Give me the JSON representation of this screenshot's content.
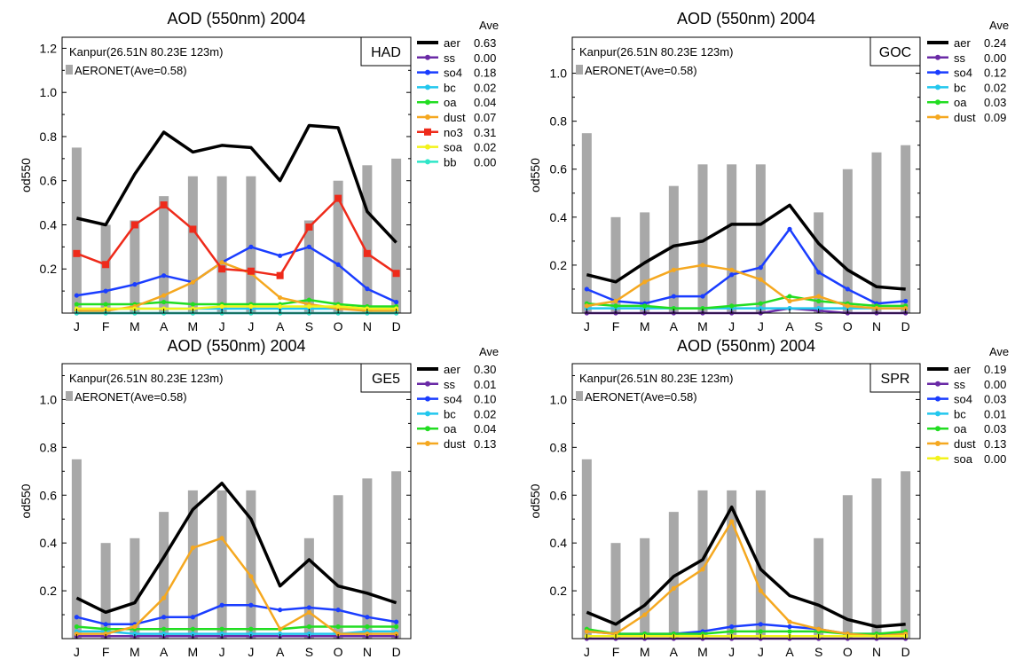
{
  "chart_data": [
    {
      "type": "bar+line",
      "title": "AOD (550nm) 2004",
      "ylabel": "od550",
      "ylim": [
        0,
        1.25
      ],
      "yticks": [
        "0.2",
        "0.4",
        "0.6",
        "0.8",
        "1.0",
        "1.2"
      ],
      "categories": [
        "J",
        "F",
        "M",
        "A",
        "M",
        "J",
        "J",
        "A",
        "S",
        "O",
        "N",
        "D"
      ],
      "site": "Kanpur(26.51N  80.23E  123m)",
      "model": "HAD",
      "bar_series": {
        "name": "AERONET(Ave=0.58)",
        "values": [
          0.75,
          0.4,
          0.42,
          0.53,
          0.62,
          0.62,
          0.62,
          0.0,
          0.42,
          0.6,
          0.67,
          0.7
        ]
      },
      "legend_header": "Ave",
      "series": [
        {
          "name": "aer",
          "ave": "0.63",
          "color": "#000000",
          "values": [
            0.43,
            0.4,
            0.63,
            0.82,
            0.73,
            0.76,
            0.75,
            0.6,
            0.85,
            0.84,
            0.46,
            0.32
          ]
        },
        {
          "name": "ss",
          "ave": "0.00",
          "color": "#6a2aa6",
          "values": [
            0.0,
            0.0,
            0.0,
            0.0,
            0.0,
            0.0,
            0.0,
            0.0,
            0.0,
            0.0,
            0.0,
            0.0
          ]
        },
        {
          "name": "so4",
          "ave": "0.18",
          "color": "#1a3dff",
          "values": [
            0.08,
            0.1,
            0.13,
            0.17,
            0.14,
            0.23,
            0.3,
            0.26,
            0.3,
            0.22,
            0.11,
            0.05
          ]
        },
        {
          "name": "bc",
          "ave": "0.02",
          "color": "#22c7ee",
          "values": [
            0.02,
            0.02,
            0.02,
            0.02,
            0.02,
            0.02,
            0.02,
            0.02,
            0.02,
            0.02,
            0.02,
            0.02
          ]
        },
        {
          "name": "oa",
          "ave": "0.04",
          "color": "#22dd22",
          "values": [
            0.04,
            0.04,
            0.04,
            0.05,
            0.04,
            0.04,
            0.04,
            0.04,
            0.06,
            0.04,
            0.03,
            0.03
          ]
        },
        {
          "name": "dust",
          "ave": "0.07",
          "color": "#f5a820",
          "values": [
            0.01,
            0.01,
            0.03,
            0.08,
            0.14,
            0.23,
            0.18,
            0.07,
            0.04,
            0.02,
            0.01,
            0.01
          ]
        },
        {
          "name": "no3",
          "ave": "0.31",
          "color": "#ee2a1a",
          "values": [
            0.27,
            0.22,
            0.4,
            0.49,
            0.38,
            0.2,
            0.19,
            0.17,
            0.39,
            0.52,
            0.27,
            0.18
          ]
        },
        {
          "name": "soa",
          "ave": "0.02",
          "color": "#f3f31a",
          "values": [
            0.02,
            0.02,
            0.02,
            0.02,
            0.02,
            0.03,
            0.03,
            0.03,
            0.03,
            0.03,
            0.02,
            0.02
          ]
        },
        {
          "name": "bb",
          "ave": "0.00",
          "color": "#2ee6c8",
          "values": [
            0.0,
            0.0,
            0.0,
            0.0,
            0.0,
            0.0,
            0.0,
            0.0,
            0.0,
            0.0,
            0.0,
            0.0
          ]
        }
      ]
    },
    {
      "type": "bar+line",
      "title": "AOD (550nm) 2004",
      "ylabel": "od550",
      "ylim": [
        0,
        1.15
      ],
      "yticks": [
        "0.2",
        "0.4",
        "0.6",
        "0.8",
        "1.0"
      ],
      "categories": [
        "J",
        "F",
        "M",
        "A",
        "M",
        "J",
        "J",
        "A",
        "S",
        "O",
        "N",
        "D"
      ],
      "site": "Kanpur(26.51N  80.23E  123m)",
      "model": "GOC",
      "bar_series": {
        "name": "AERONET(Ave=0.58)",
        "values": [
          0.75,
          0.4,
          0.42,
          0.53,
          0.62,
          0.62,
          0.62,
          0.0,
          0.42,
          0.6,
          0.67,
          0.7
        ]
      },
      "legend_header": "Ave",
      "series": [
        {
          "name": "aer",
          "ave": "0.24",
          "color": "#000000",
          "values": [
            0.16,
            0.13,
            0.21,
            0.28,
            0.3,
            0.37,
            0.37,
            0.45,
            0.29,
            0.18,
            0.11,
            0.1
          ]
        },
        {
          "name": "ss",
          "ave": "0.00",
          "color": "#6a2aa6",
          "values": [
            0.0,
            0.0,
            0.0,
            0.0,
            0.0,
            0.0,
            0.0,
            0.02,
            0.01,
            0.0,
            0.0,
            0.0
          ]
        },
        {
          "name": "so4",
          "ave": "0.12",
          "color": "#1a3dff",
          "values": [
            0.1,
            0.05,
            0.04,
            0.07,
            0.07,
            0.16,
            0.19,
            0.35,
            0.17,
            0.1,
            0.04,
            0.05
          ]
        },
        {
          "name": "bc",
          "ave": "0.02",
          "color": "#22c7ee",
          "values": [
            0.02,
            0.02,
            0.02,
            0.02,
            0.02,
            0.02,
            0.02,
            0.02,
            0.02,
            0.02,
            0.02,
            0.02
          ]
        },
        {
          "name": "oa",
          "ave": "0.03",
          "color": "#22dd22",
          "values": [
            0.04,
            0.03,
            0.03,
            0.02,
            0.02,
            0.03,
            0.04,
            0.07,
            0.05,
            0.04,
            0.03,
            0.03
          ]
        },
        {
          "name": "dust",
          "ave": "0.09",
          "color": "#f5a820",
          "values": [
            0.03,
            0.05,
            0.13,
            0.18,
            0.2,
            0.18,
            0.14,
            0.05,
            0.07,
            0.03,
            0.02,
            0.02
          ]
        }
      ]
    },
    {
      "type": "bar+line",
      "title": "AOD (550nm) 2004",
      "ylabel": "od550",
      "ylim": [
        0,
        1.15
      ],
      "yticks": [
        "0.2",
        "0.4",
        "0.6",
        "0.8",
        "1.0"
      ],
      "categories": [
        "J",
        "F",
        "M",
        "A",
        "M",
        "J",
        "J",
        "A",
        "S",
        "O",
        "N",
        "D"
      ],
      "site": "Kanpur(26.51N  80.23E  123m)",
      "model": "GE5",
      "bar_series": {
        "name": "AERONET(Ave=0.58)",
        "values": [
          0.75,
          0.4,
          0.42,
          0.53,
          0.62,
          0.62,
          0.62,
          0.0,
          0.42,
          0.6,
          0.67,
          0.7
        ]
      },
      "legend_header": "Ave",
      "series": [
        {
          "name": "aer",
          "ave": "0.30",
          "color": "#000000",
          "values": [
            0.17,
            0.11,
            0.15,
            0.34,
            0.54,
            0.65,
            0.5,
            0.22,
            0.33,
            0.22,
            0.19,
            0.15
          ]
        },
        {
          "name": "ss",
          "ave": "0.01",
          "color": "#6a2aa6",
          "values": [
            0.01,
            0.01,
            0.01,
            0.01,
            0.01,
            0.01,
            0.01,
            0.01,
            0.01,
            0.01,
            0.01,
            0.01
          ]
        },
        {
          "name": "so4",
          "ave": "0.10",
          "color": "#1a3dff",
          "values": [
            0.09,
            0.06,
            0.06,
            0.09,
            0.09,
            0.14,
            0.14,
            0.12,
            0.13,
            0.12,
            0.09,
            0.07
          ]
        },
        {
          "name": "bc",
          "ave": "0.02",
          "color": "#22c7ee",
          "values": [
            0.03,
            0.03,
            0.02,
            0.02,
            0.02,
            0.02,
            0.02,
            0.02,
            0.02,
            0.02,
            0.03,
            0.03
          ]
        },
        {
          "name": "oa",
          "ave": "0.04",
          "color": "#22dd22",
          "values": [
            0.05,
            0.04,
            0.04,
            0.04,
            0.04,
            0.04,
            0.04,
            0.04,
            0.05,
            0.05,
            0.05,
            0.05
          ]
        },
        {
          "name": "dust",
          "ave": "0.13",
          "color": "#f5a820",
          "values": [
            0.02,
            0.02,
            0.05,
            0.17,
            0.38,
            0.42,
            0.26,
            0.04,
            0.11,
            0.02,
            0.02,
            0.02
          ]
        }
      ]
    },
    {
      "type": "bar+line",
      "title": "AOD (550nm) 2004",
      "ylabel": "od550",
      "ylim": [
        0,
        1.15
      ],
      "yticks": [
        "0.2",
        "0.4",
        "0.6",
        "0.8",
        "1.0"
      ],
      "categories": [
        "J",
        "F",
        "M",
        "A",
        "M",
        "J",
        "J",
        "A",
        "S",
        "O",
        "N",
        "D"
      ],
      "site": "Kanpur(26.51N  80.23E  123m)",
      "model": "SPR",
      "bar_series": {
        "name": "AERONET(Ave=0.58)",
        "values": [
          0.75,
          0.4,
          0.42,
          0.53,
          0.62,
          0.62,
          0.62,
          0.0,
          0.42,
          0.6,
          0.67,
          0.7
        ]
      },
      "legend_header": "Ave",
      "series": [
        {
          "name": "aer",
          "ave": "0.19",
          "color": "#000000",
          "values": [
            0.11,
            0.06,
            0.14,
            0.26,
            0.33,
            0.55,
            0.29,
            0.18,
            0.14,
            0.08,
            0.05,
            0.06
          ]
        },
        {
          "name": "ss",
          "ave": "0.00",
          "color": "#6a2aa6",
          "values": [
            0.0,
            0.0,
            0.0,
            0.0,
            0.0,
            0.0,
            0.0,
            0.0,
            0.0,
            0.0,
            0.0,
            0.0
          ]
        },
        {
          "name": "so4",
          "ave": "0.03",
          "color": "#1a3dff",
          "values": [
            0.03,
            0.02,
            0.02,
            0.02,
            0.03,
            0.05,
            0.06,
            0.05,
            0.04,
            0.02,
            0.02,
            0.02
          ]
        },
        {
          "name": "bc",
          "ave": "0.01",
          "color": "#22c7ee",
          "values": [
            0.01,
            0.01,
            0.01,
            0.01,
            0.01,
            0.01,
            0.01,
            0.01,
            0.01,
            0.01,
            0.01,
            0.01
          ]
        },
        {
          "name": "oa",
          "ave": "0.03",
          "color": "#22dd22",
          "values": [
            0.04,
            0.02,
            0.02,
            0.02,
            0.02,
            0.03,
            0.03,
            0.03,
            0.03,
            0.02,
            0.02,
            0.03
          ]
        },
        {
          "name": "dust",
          "ave": "0.13",
          "color": "#f5a820",
          "values": [
            0.03,
            0.02,
            0.1,
            0.21,
            0.29,
            0.49,
            0.2,
            0.07,
            0.04,
            0.02,
            0.01,
            0.02
          ]
        },
        {
          "name": "soa",
          "ave": "0.00",
          "color": "#f3f31a",
          "values": [
            0.01,
            0.01,
            0.01,
            0.01,
            0.01,
            0.01,
            0.01,
            0.01,
            0.01,
            0.01,
            0.01,
            0.01
          ]
        }
      ]
    }
  ]
}
